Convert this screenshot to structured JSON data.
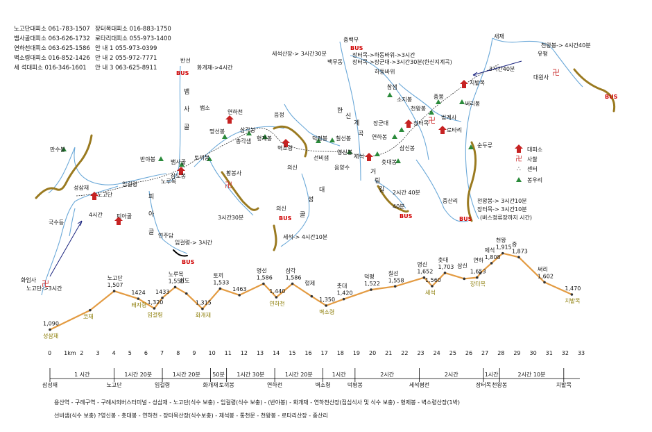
{
  "contacts": [
    {
      "office": "노고단대피소 061-783-1507",
      "office2": "장터목대피소 016-883-1750"
    },
    {
      "office": "뱀사골대피소 063-626-1732",
      "office2": "로타리대피소 055-973-1400"
    },
    {
      "office": "연하천대피소 063-625-1586",
      "office2": "안 내 1 055-973-0399"
    },
    {
      "office": "벽소령대피소 016-852-1426",
      "office2": "안 내 2 055-972-7771"
    },
    {
      "office": "세 석대피소 016-346-1601",
      "office2": "안 내 3 063-625-8911"
    }
  ],
  "legend": {
    "shelter": "대피소",
    "temple": "사찰",
    "center": "센터",
    "peak": "봉우리"
  },
  "map_labels": {
    "bansun": "반선",
    "hwagae_time": "화개재->4시간",
    "baem": "뱀",
    "sa": "사",
    "gol": "골",
    "baemso": "뱀소",
    "yeonhacheon": "연하천",
    "samgakbong": "삼각봉",
    "myeongseonbong": "명선봉",
    "chonggakaem": "총각샘",
    "hyeongjebong": "형제봉",
    "eumjeong": "음정",
    "byeoksoryeong": "벽소령",
    "uisin_small": "의신",
    "deokpyeongbong": "덕평봉",
    "chilseonbong": "칠선봉",
    "seonbisaem": "선비샘",
    "yeongsinbong": "영신봉",
    "seseok": "세석",
    "eumyangsu": "음양수",
    "han": "한",
    "sin": "신",
    "gye": "계",
    "gok": "곡",
    "seseok_sanjang": "세석산장-> 3시간30분",
    "jungsanri_top": "중백무",
    "baekmudong": "백무동",
    "jangteo1": "장터목->하동바위->3시간",
    "jangteo2": "장터목->장군대->3시간30분(한신지계곡)",
    "hadongbawi": "하동바위",
    "chamsaem": "참샘",
    "sojibong": "소지봉",
    "janggundae": "장군대",
    "jangteomok": "장터목",
    "yeonhabong": "연하봉",
    "samsinbong": "삼신봉",
    "chotdaebong": "촛대봉",
    "geo": "거",
    "rim": "림",
    "gil": "길",
    "time_2_40": "2시간 40분",
    "h40": "40분",
    "saejae": "새재",
    "yuam": "유평",
    "cheonwang_time": "천왕봉-> 4시간40분",
    "t3_40": "3시간40분",
    "daewonsa": "대원사",
    "chibatmok": "치밭목",
    "jeungbong": "중봉",
    "ssarribong": "써리봉",
    "cheonwangbong": "천왕봉",
    "beopgyesa": "법계사",
    "rotari": "로타리",
    "sundubong": "순두류",
    "jungsanri": "중산리",
    "cw_10": "천왕봉-> 3시간10분",
    "jt_10": "장터목-> 3시간10분",
    "bus_note": "(버스정류장까지 시간)",
    "mansubong": "만수봉",
    "seongsamjae": "성삼재",
    "nogodan": "노고단",
    "imgeollyeong": "임걸령",
    "banyabong": "반야봉",
    "nodubong": "노루목",
    "baemsagol": "뱀사골",
    "samdobong": "삼도봉",
    "tokkibong": "토끼봉",
    "hwagaejae": "화개재",
    "piagol": "피아골",
    "pi": "피",
    "a": "아",
    "gol2": "골",
    "yeonjudam": "연주담",
    "imgeol_time": "임걸령-> 3시간",
    "t3_30": "3시간30분",
    "hwaeomsa": "화엄사",
    "nogodan_time": "노고단->3시간",
    "t4h": "4시간",
    "gukudeung": "국수등",
    "uisin": "의신",
    "seseok_time": "세석-> 4시간10분",
    "daeseong": "대",
    "seong": "성",
    "gol3": "골",
    "bus": "BUS",
    "hwagaebong": "황봉사"
  },
  "profile_points": [
    {
      "x": 0,
      "e": 1090,
      "name": "성삼재",
      "elabel": "1,090"
    },
    {
      "x": 2.5,
      "e": 1300,
      "name": "코재",
      "elabel": ""
    },
    {
      "x": 4,
      "e": 1507,
      "name": "노고단",
      "elabel": "1,507"
    },
    {
      "x": 5.5,
      "e": 1424,
      "name": "돼지령",
      "elabel": "1424"
    },
    {
      "x": 6.5,
      "e": 1320,
      "name": "임걸령",
      "elabel": "1,320"
    },
    {
      "x": 7,
      "e": 1433,
      "name": "",
      "elabel": "1433"
    },
    {
      "x": 7.8,
      "e": 1550,
      "name": "노루목",
      "elabel": "1,550"
    },
    {
      "x": 8.5,
      "e": 1480,
      "name": "삼도",
      "elabel": ""
    },
    {
      "x": 9.5,
      "e": 1315,
      "name": "화개재",
      "elabel": "1,315"
    },
    {
      "x": 10.6,
      "e": 1533,
      "name": "토끼",
      "elabel": "1,533"
    },
    {
      "x": 11.8,
      "e": 1463,
      "name": "",
      "elabel": "1463"
    },
    {
      "x": 13.3,
      "e": 1586,
      "name": "명선",
      "elabel": "1,586"
    },
    {
      "x": 14.1,
      "e": 1440,
      "name": "연하천",
      "elabel": "1,440"
    },
    {
      "x": 15.1,
      "e": 1586,
      "name": "삼각",
      "elabel": "1,586"
    },
    {
      "x": 16.3,
      "e": 1450,
      "name": "형제",
      "elabel": ""
    },
    {
      "x": 17.2,
      "e": 1350,
      "name": "벽소령",
      "elabel": "1,350"
    },
    {
      "x": 18.3,
      "e": 1420,
      "name": "촛대",
      "elabel": "1,420"
    },
    {
      "x": 20,
      "e": 1522,
      "name": "덕평",
      "elabel": "1,522"
    },
    {
      "x": 21.5,
      "e": 1558,
      "name": "칠선",
      "elabel": "1,558"
    },
    {
      "x": 23.3,
      "e": 1652,
      "name": "영신",
      "elabel": "1,652"
    },
    {
      "x": 23.8,
      "e": 1560,
      "name": "세석",
      "elabel": "1,560"
    },
    {
      "x": 24.6,
      "e": 1703,
      "name": "촛대",
      "elabel": "1,703"
    },
    {
      "x": 25.8,
      "e": 1640,
      "name": "삼신",
      "elabel": ""
    },
    {
      "x": 26.6,
      "e": 1653,
      "name": "장터목",
      "elabel": "1,653"
    },
    {
      "x": 26.8,
      "e": 1700,
      "name": "연하",
      "elabel": ""
    },
    {
      "x": 27.5,
      "e": 1808,
      "name": "제석",
      "elabel": "1,808"
    },
    {
      "x": 28.2,
      "e": 1915,
      "name": "천왕",
      "elabel": "1,915"
    },
    {
      "x": 29.2,
      "e": 1873,
      "name": "중",
      "elabel": "1,873"
    },
    {
      "x": 30.8,
      "e": 1602,
      "name": "써리",
      "elabel": "1,602"
    },
    {
      "x": 32.5,
      "e": 1470,
      "name": "치밭목",
      "elabel": "1,470"
    }
  ],
  "ruler": {
    "unit": "1km",
    "ticks": [
      "0",
      "1km",
      "2",
      "3",
      "4",
      "5",
      "6",
      "7",
      "8",
      "9",
      "10",
      "11",
      "12",
      "13",
      "14",
      "15",
      "16",
      "17",
      "18",
      "19",
      "20",
      "21",
      "22",
      "23",
      "24",
      "25",
      "26",
      "27",
      "28",
      "29",
      "30",
      "31",
      "32",
      "33"
    ],
    "segments": [
      {
        "label": "1 시간",
        "from": 0,
        "to": 4
      },
      {
        "label": "1시간 20분",
        "from": 4,
        "to": 7
      },
      {
        "label": "1시간 20분",
        "from": 7,
        "to": 10
      },
      {
        "label": "50분",
        "from": 10,
        "to": 11
      },
      {
        "label": "1시간 30분",
        "from": 11,
        "to": 14
      },
      {
        "label": "1시간 20분",
        "from": 14,
        "to": 17
      },
      {
        "label": "1시간",
        "from": 17,
        "to": 19
      },
      {
        "label": "2시간",
        "from": 19,
        "to": 23
      },
      {
        "label": "2시간",
        "from": 23,
        "to": 27
      },
      {
        "label": "1시간",
        "from": 27,
        "to": 28
      },
      {
        "label": "2시간 10분",
        "from": 28,
        "to": 32
      }
    ],
    "places": [
      {
        "x": 0,
        "label": "삼성재"
      },
      {
        "x": 4,
        "label": "노고단"
      },
      {
        "x": 7,
        "label": "임걸령"
      },
      {
        "x": 10,
        "label": "화개재"
      },
      {
        "x": 11,
        "label": "토끼봉"
      },
      {
        "x": 14,
        "label": "연하천"
      },
      {
        "x": 17,
        "label": "벽소령"
      },
      {
        "x": 19,
        "label": "덕평봉"
      },
      {
        "x": 23,
        "label": "세석평전"
      },
      {
        "x": 27,
        "label": "장터목"
      },
      {
        "x": 28,
        "label": "천왕봉"
      },
      {
        "x": 32,
        "label": "치밭목"
      }
    ]
  },
  "route_text": [
    "용산역 - 구례구역 - 구례시외버스터미널 - 성삼재 - 노고단(식수 보충) - 임걸령(식수 보충) - (반야봉) - 화개재 - 연하천산장(점심식사 및 식수 보충) - 형제봉 - 벽소령산장(1박)",
    "선비샘(식수 보충) ?영신봉 - 촛대봉 - 연하천 - 장터목산장(식수보충) - 제석봉 - 통천문 - 천왕봉 - 로타리산장 - 중산리"
  ]
}
